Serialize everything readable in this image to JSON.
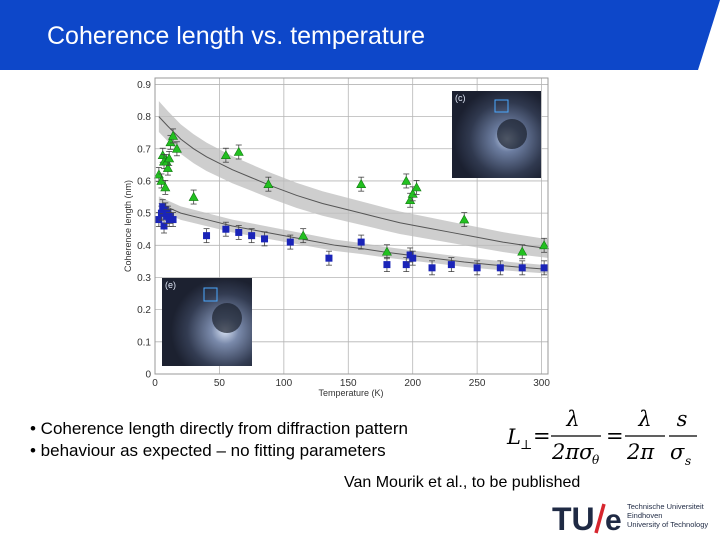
{
  "slide": {
    "title": "Coherence length vs. temperature",
    "bullets": [
      "• Coherence length directly from diffraction pattern",
      "• behaviour as expected – no fitting parameters"
    ],
    "citation": "Van Mourik et al., to be published",
    "logo": {
      "mark": "TU/e",
      "lines": [
        "Technische Universiteit",
        "Eindhoven",
        "University of Technology"
      ]
    },
    "colors": {
      "header_blue": "#0d47c9",
      "logo_blue": "#1f2a44",
      "slash_red": "#d7262e"
    }
  },
  "formula": {
    "lhs": "L",
    "lhs_sub": "⊥",
    "frac1_num": "λ",
    "frac1_den": "2πσ",
    "frac1_den_sub": "θ",
    "frac2_num_a": "λ",
    "frac2_num_b": "s",
    "frac2_den_a": "2π",
    "frac2_den_b": "σ",
    "frac2_den_sub": "s"
  },
  "chart_data": {
    "type": "scatter",
    "xlabel": "Temperature (K)",
    "ylabel": "Coherence length (nm)",
    "xlim": [
      0,
      305
    ],
    "ylim": [
      0,
      0.92
    ],
    "xticks": [
      0,
      50,
      100,
      150,
      200,
      250,
      300
    ],
    "yticks": [
      0,
      0.1,
      0.2,
      0.3,
      0.4,
      0.5,
      0.6,
      0.7,
      0.8,
      0.9
    ],
    "grid": true,
    "inset_labels": [
      "(c)",
      "(e)"
    ],
    "colors": {
      "green": "#22c020",
      "blue": "#1a24b8",
      "band": "#bdbdbd",
      "curve": "#555555"
    },
    "series": [
      {
        "marker": "triangle",
        "color": "#22c020",
        "x": [
          3,
          5,
          6,
          7,
          8,
          9,
          10,
          11,
          12,
          14,
          17,
          30,
          55,
          65,
          88,
          115,
          160,
          180,
          195,
          198,
          200,
          203,
          240,
          285,
          302
        ],
        "y": [
          0.62,
          0.6,
          0.68,
          0.66,
          0.58,
          0.66,
          0.64,
          0.67,
          0.72,
          0.74,
          0.7,
          0.55,
          0.68,
          0.69,
          0.59,
          0.43,
          0.59,
          0.38,
          0.6,
          0.54,
          0.56,
          0.58,
          0.48,
          0.38,
          0.4
        ]
      },
      {
        "marker": "square",
        "color": "#1a24b8",
        "x": [
          3,
          5,
          6,
          7,
          8,
          9,
          10,
          11,
          12,
          14,
          40,
          55,
          65,
          75,
          85,
          105,
          135,
          160,
          180,
          195,
          198,
          200,
          215,
          230,
          250,
          268,
          285,
          302
        ],
        "y": [
          0.48,
          0.5,
          0.52,
          0.46,
          0.51,
          0.49,
          0.5,
          0.48,
          0.49,
          0.48,
          0.43,
          0.45,
          0.44,
          0.43,
          0.42,
          0.41,
          0.36,
          0.41,
          0.34,
          0.34,
          0.37,
          0.36,
          0.33,
          0.34,
          0.33,
          0.33,
          0.33,
          0.33
        ]
      },
      {
        "type": "line",
        "x": [
          3,
          10,
          20,
          30,
          40,
          50,
          60,
          75,
          90,
          110,
          130,
          150,
          170,
          190,
          210,
          230,
          250,
          270,
          290,
          305
        ],
        "y": [
          0.8,
          0.77,
          0.73,
          0.7,
          0.675,
          0.655,
          0.635,
          0.61,
          0.585,
          0.555,
          0.53,
          0.51,
          0.49,
          0.47,
          0.455,
          0.44,
          0.425,
          0.41,
          0.398,
          0.39
        ]
      },
      {
        "type": "line",
        "x": [
          3,
          20,
          40,
          60,
          80,
          100,
          120,
          140,
          160,
          180,
          200,
          220,
          240,
          260,
          280,
          305
        ],
        "y": [
          0.53,
          0.5,
          0.48,
          0.46,
          0.445,
          0.43,
          0.415,
          0.4,
          0.39,
          0.378,
          0.368,
          0.358,
          0.348,
          0.34,
          0.333,
          0.325
        ]
      }
    ]
  }
}
